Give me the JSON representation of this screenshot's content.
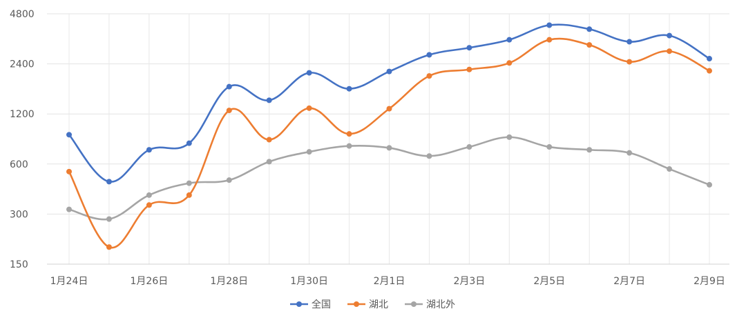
{
  "chart_data": {
    "type": "line",
    "title": "",
    "xlabel": "",
    "ylabel": "",
    "y_scale": "log",
    "ylim": [
      150,
      4800
    ],
    "y_ticks": [
      150,
      300,
      600,
      1200,
      2400,
      4800
    ],
    "y_tick_labels": [
      "150",
      "300",
      "600",
      "1200",
      "2400",
      "4800"
    ],
    "x": [
      "1月24日",
      "1月25日",
      "1月26日",
      "1月27日",
      "1月28日",
      "1月29日",
      "1月30日",
      "1月31日",
      "2月1日",
      "2月2日",
      "2月3日",
      "2月4日",
      "2月5日",
      "2月6日",
      "2月7日",
      "2月8日",
      "2月9日"
    ],
    "x_tick_labels": [
      "1月24日",
      "",
      "1月26日",
      "",
      "1月28日",
      "",
      "1月30日",
      "",
      "2月1日",
      "",
      "2月3日",
      "",
      "2月5日",
      "",
      "2月7日",
      "",
      "2月9日"
    ],
    "grid": true,
    "legend_position": "bottom",
    "series": [
      {
        "name": "全国",
        "color": "#4472C4",
        "values": [
          900,
          470,
          730,
          800,
          1750,
          1450,
          2120,
          1700,
          2160,
          2720,
          3000,
          3350,
          4100,
          3880,
          3260,
          3550,
          2580
        ]
      },
      {
        "name": "湖北",
        "color": "#ED7D31",
        "values": [
          540,
          190,
          340,
          390,
          1260,
          840,
          1300,
          910,
          1290,
          2030,
          2220,
          2430,
          3350,
          3120,
          2470,
          2860,
          2180
        ]
      },
      {
        "name": "湖北外",
        "color": "#A5A5A5",
        "values": [
          320,
          280,
          390,
          460,
          480,
          620,
          710,
          770,
          750,
          670,
          760,
          870,
          760,
          730,
          700,
          560,
          450
        ]
      }
    ]
  }
}
